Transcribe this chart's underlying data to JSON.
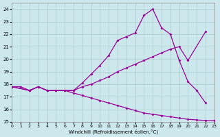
{
  "xlabel": "Windchill (Refroidissement éolien,°C)",
  "background_color": "#cce8ed",
  "line_color": "#990099",
  "grid_color": "#aacccc",
  "xlim": [
    0,
    23
  ],
  "ylim": [
    15,
    24.5
  ],
  "xticks": [
    0,
    1,
    2,
    3,
    4,
    5,
    6,
    7,
    8,
    9,
    10,
    11,
    12,
    13,
    14,
    15,
    16,
    17,
    18,
    19,
    20,
    21,
    22,
    23
  ],
  "yticks": [
    15,
    16,
    17,
    18,
    19,
    20,
    21,
    22,
    23,
    24
  ],
  "series": [
    {
      "name": "top_arch",
      "x": [
        0,
        2,
        3,
        4,
        5,
        6,
        7,
        8,
        9,
        10,
        11,
        12,
        13,
        14,
        15,
        16,
        17,
        18,
        19,
        20,
        21,
        22
      ],
      "y": [
        17.8,
        17.5,
        17.8,
        17.5,
        17.5,
        17.5,
        17.5,
        18.1,
        18.8,
        19.5,
        20.3,
        21.5,
        21.8,
        22.1,
        23.5,
        24.0,
        22.5,
        22.0,
        19.9,
        18.2,
        17.5,
        16.5
      ]
    },
    {
      "name": "mid_rising",
      "x": [
        0,
        2,
        3,
        4,
        5,
        6,
        7,
        8,
        9,
        10,
        11,
        12,
        13,
        14,
        15,
        16,
        17,
        18,
        19,
        20,
        22
      ],
      "y": [
        17.8,
        17.5,
        17.8,
        17.5,
        17.5,
        17.5,
        17.5,
        17.8,
        18.0,
        18.3,
        18.6,
        19.0,
        19.3,
        19.6,
        19.9,
        20.2,
        20.5,
        20.8,
        21.0,
        19.9,
        22.2
      ]
    },
    {
      "name": "bottom_decline",
      "x": [
        0,
        1,
        2,
        3,
        4,
        5,
        6,
        7,
        8,
        9,
        10,
        11,
        12,
        13,
        14,
        15,
        16,
        17,
        18,
        19,
        20,
        21,
        22,
        23
      ],
      "y": [
        17.8,
        17.8,
        17.5,
        17.8,
        17.5,
        17.5,
        17.5,
        17.3,
        17.1,
        16.9,
        16.7,
        16.5,
        16.3,
        16.1,
        15.9,
        15.7,
        15.6,
        15.5,
        15.4,
        15.3,
        15.2,
        15.15,
        15.1,
        15.1
      ]
    }
  ]
}
